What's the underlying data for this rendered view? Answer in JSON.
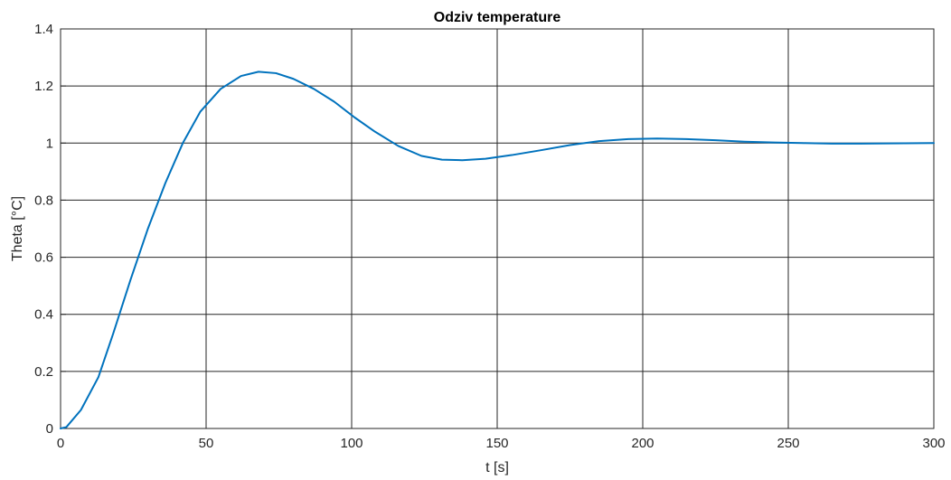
{
  "chart_data": {
    "type": "line",
    "title": "Odziv temperature",
    "xlabel": "t [s]",
    "ylabel": "Theta [°C]",
    "xlim": [
      0,
      300
    ],
    "ylim": [
      0,
      1.4
    ],
    "xticks": [
      0,
      50,
      100,
      150,
      200,
      250,
      300
    ],
    "yticks": [
      0,
      0.2,
      0.4,
      0.6,
      0.8,
      1,
      1.2,
      1.4
    ],
    "grid": true,
    "color": "#0072BD",
    "series": [
      {
        "x": [
          0,
          2,
          7,
          13,
          18,
          24,
          30,
          36,
          42,
          48,
          55,
          62,
          68,
          74,
          80,
          87,
          94,
          101,
          108,
          116,
          124,
          131,
          138,
          146,
          155,
          165,
          175,
          185,
          195,
          205,
          215,
          225,
          235,
          245,
          255,
          265,
          275,
          285,
          300
        ],
        "y": [
          0,
          0.005,
          0.065,
          0.18,
          0.33,
          0.52,
          0.7,
          0.86,
          1.0,
          1.11,
          1.19,
          1.235,
          1.25,
          1.245,
          1.225,
          1.19,
          1.145,
          1.09,
          1.04,
          0.99,
          0.955,
          0.942,
          0.94,
          0.945,
          0.958,
          0.975,
          0.993,
          1.007,
          1.014,
          1.016,
          1.014,
          1.01,
          1.005,
          1.002,
          1.0,
          0.998,
          0.998,
          0.999,
          1.0
        ]
      }
    ]
  }
}
